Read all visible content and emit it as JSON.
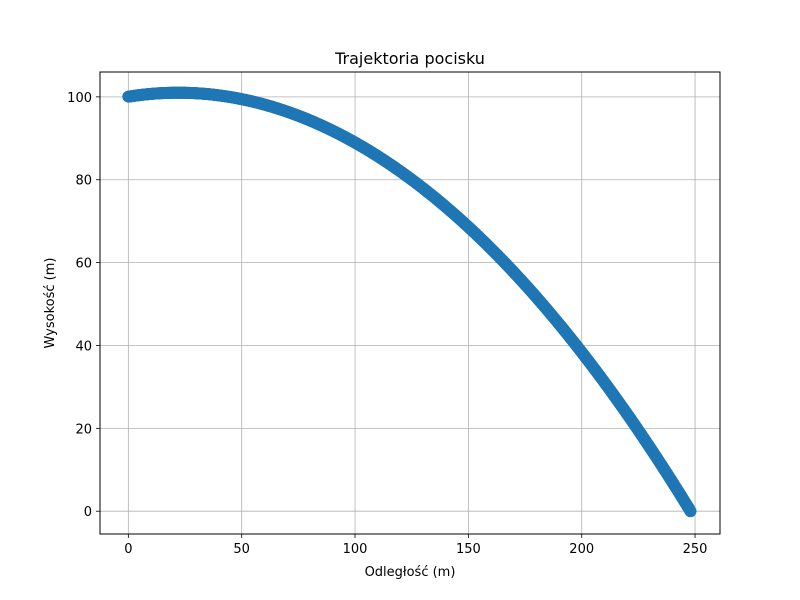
{
  "chart_data": {
    "type": "scatter",
    "title": "Trajektoria pocisku",
    "xlabel": "Odległość (m)",
    "ylabel": "Wysokość (m)",
    "xlim": [
      -12.5,
      261
    ],
    "ylim": [
      -5.5,
      106
    ],
    "xticks": [
      0,
      50,
      100,
      150,
      200,
      250
    ],
    "yticks": [
      0,
      20,
      40,
      60,
      80,
      100
    ],
    "grid": true,
    "marker_color": "#1f77b4",
    "series": [
      {
        "trajectory": {
          "x0": 0,
          "y0": 100,
          "x_apex": 22,
          "y_apex": 101,
          "x_end": 248,
          "y_end": 0
        },
        "x": [
          0,
          2,
          5,
          10,
          15,
          20,
          22,
          25,
          30,
          40,
          50,
          60,
          70,
          80,
          90,
          100,
          110,
          120,
          130,
          140,
          150,
          160,
          170,
          180,
          190,
          200,
          210,
          220,
          230,
          240,
          248
        ],
        "y": [
          100,
          100.3,
          100.6,
          100.8,
          100.9,
          101,
          101,
          101,
          100.9,
          100.5,
          99.7,
          98.5,
          96.8,
          94.7,
          92.1,
          89.2,
          85.8,
          82.0,
          77.7,
          73.0,
          67.9,
          62.4,
          56.4,
          50.0,
          43.2,
          36.0,
          28.4,
          20.3,
          11.8,
          3.9,
          0
        ]
      }
    ]
  }
}
